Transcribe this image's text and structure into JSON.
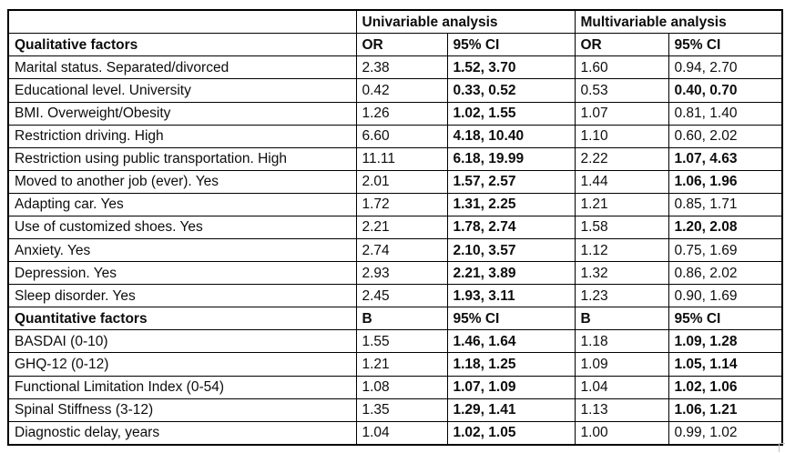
{
  "colors": {
    "background": "#ffffff",
    "border": "#000000",
    "text": "#0d0d0d"
  },
  "table": {
    "group_headers": {
      "corner": "",
      "univariable": "Univariable analysis",
      "multivariable": "Multivariable analysis"
    },
    "qualitative": {
      "section_label": "Qualitative factors",
      "col_headers": [
        "OR",
        "95% CI",
        "OR",
        "95% CI"
      ],
      "rows": [
        {
          "factor": "Marital status. Separated/divorced",
          "uni_est": "2.38",
          "uni_ci": "1.52, 3.70",
          "uni_ci_bold": true,
          "multi_est": "1.60",
          "multi_ci": "0.94, 2.70",
          "multi_ci_bold": false
        },
        {
          "factor": "Educational level. University",
          "uni_est": "0.42",
          "uni_ci": "0.33, 0.52",
          "uni_ci_bold": true,
          "multi_est": "0.53",
          "multi_ci": "0.40, 0.70",
          "multi_ci_bold": true
        },
        {
          "factor": "BMI. Overweight/Obesity",
          "uni_est": "1.26",
          "uni_ci": "1.02, 1.55",
          "uni_ci_bold": true,
          "multi_est": "1.07",
          "multi_ci": "0.81, 1.40",
          "multi_ci_bold": false
        },
        {
          "factor": "Restriction driving. High",
          "uni_est": "6.60",
          "uni_ci": "4.18, 10.40",
          "uni_ci_bold": true,
          "multi_est": "1.10",
          "multi_ci": "0.60, 2.02",
          "multi_ci_bold": false
        },
        {
          "factor": "Restriction using public transportation. High",
          "uni_est": "11.11",
          "uni_ci": "6.18, 19.99",
          "uni_ci_bold": true,
          "multi_est": "2.22",
          "multi_ci": "1.07, 4.63",
          "multi_ci_bold": true
        },
        {
          "factor": "Moved to another job (ever). Yes",
          "uni_est": "2.01",
          "uni_ci": "1.57, 2.57",
          "uni_ci_bold": true,
          "multi_est": "1.44",
          "multi_ci": "1.06, 1.96",
          "multi_ci_bold": true
        },
        {
          "factor": "Adapting car. Yes",
          "uni_est": "1.72",
          "uni_ci": "1.31, 2.25",
          "uni_ci_bold": true,
          "multi_est": "1.21",
          "multi_ci": "0.85, 1.71",
          "multi_ci_bold": false
        },
        {
          "factor": "Use of customized shoes. Yes",
          "uni_est": "2.21",
          "uni_ci": "1.78, 2.74",
          "uni_ci_bold": true,
          "multi_est": "1.58",
          "multi_ci": "1.20, 2.08",
          "multi_ci_bold": true
        },
        {
          "factor": "Anxiety. Yes",
          "uni_est": "2.74",
          "uni_ci": "2.10, 3.57",
          "uni_ci_bold": true,
          "multi_est": "1.12",
          "multi_ci": "0.75, 1.69",
          "multi_ci_bold": false
        },
        {
          "factor": "Depression. Yes",
          "uni_est": "2.93",
          "uni_ci": "2.21, 3.89",
          "uni_ci_bold": true,
          "multi_est": "1.32",
          "multi_ci": "0.86, 2.02",
          "multi_ci_bold": false
        },
        {
          "factor": "Sleep disorder. Yes",
          "uni_est": "2.45",
          "uni_ci": "1.93, 3.11",
          "uni_ci_bold": true,
          "multi_est": "1.23",
          "multi_ci": "0.90, 1.69",
          "multi_ci_bold": false
        }
      ]
    },
    "quantitative": {
      "section_label": "Quantitative factors",
      "col_headers": [
        "B",
        "95% CI",
        "B",
        "95% CI"
      ],
      "rows": [
        {
          "factor": "BASDAI (0-10)",
          "uni_est": "1.55",
          "uni_ci": "1.46, 1.64",
          "uni_ci_bold": true,
          "multi_est": "1.18",
          "multi_ci": "1.09, 1.28",
          "multi_ci_bold": true
        },
        {
          "factor": "GHQ-12 (0-12)",
          "uni_est": "1.21",
          "uni_ci": "1.18, 1.25",
          "uni_ci_bold": true,
          "multi_est": "1.09",
          "multi_ci": "1.05, 1.14",
          "multi_ci_bold": true
        },
        {
          "factor": "Functional Limitation Index (0-54)",
          "uni_est": "1.08",
          "uni_ci": "1.07, 1.09",
          "uni_ci_bold": true,
          "multi_est": "1.04",
          "multi_ci": "1.02, 1.06",
          "multi_ci_bold": true
        },
        {
          "factor": "Spinal Stiffness (3-12)",
          "uni_est": "1.35",
          "uni_ci": "1.29, 1.41",
          "uni_ci_bold": true,
          "multi_est": "1.13",
          "multi_ci": "1.06, 1.21",
          "multi_ci_bold": true
        },
        {
          "factor": "Diagnostic delay, years",
          "uni_est": "1.04",
          "uni_ci": "1.02, 1.05",
          "uni_ci_bold": true,
          "multi_est": "1.00",
          "multi_ci": "0.99, 1.02",
          "multi_ci_bold": false
        }
      ]
    }
  }
}
